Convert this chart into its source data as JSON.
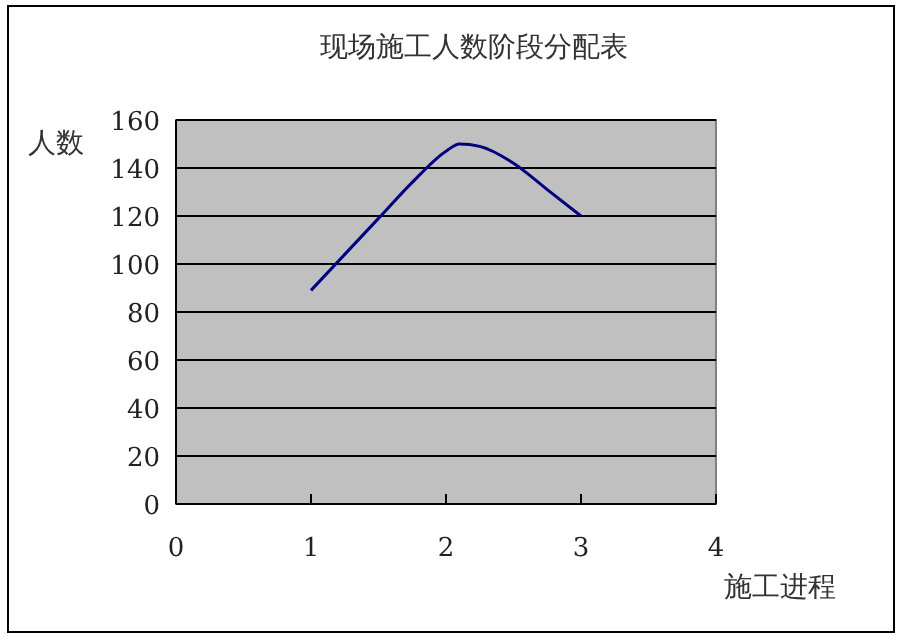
{
  "chart_data": {
    "type": "line",
    "title": "现场施工人数阶段分配表",
    "xlabel": "施工进程",
    "ylabel": "人数",
    "x": [
      1,
      1.25,
      1.5,
      1.75,
      2,
      2.1,
      2.25,
      2.5,
      2.75,
      3
    ],
    "series": [
      {
        "color": "#000080",
        "values": [
          89,
          104,
          119,
          134,
          147,
          150,
          149,
          142,
          131,
          120
        ]
      }
    ],
    "xlim": [
      0,
      4
    ],
    "xticks": [
      0,
      1,
      2,
      3,
      4
    ],
    "ylim": [
      0,
      160
    ],
    "yticks": [
      0,
      20,
      40,
      60,
      80,
      100,
      120,
      140,
      160
    ],
    "grid": "y",
    "marker": "none",
    "line_style": "solid"
  }
}
